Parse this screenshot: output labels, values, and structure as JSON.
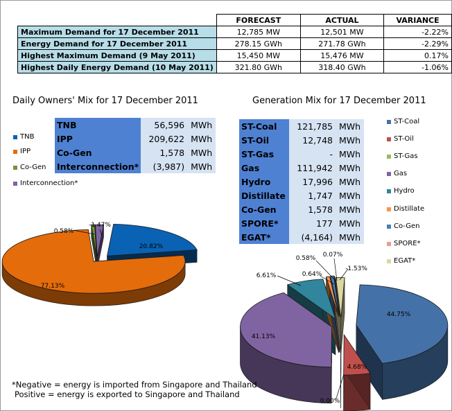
{
  "summary": {
    "headers": [
      "FORECAST",
      "ACTUAL",
      "VARIANCE"
    ],
    "rows": [
      {
        "label": "Maximum Demand for 17 December 2011",
        "forecast": "12,785  MW",
        "actual": "12,501  MW",
        "variance": "-2.22%"
      },
      {
        "label": "Energy Demand for 17 December 2011",
        "forecast": "278.15  GWh",
        "actual": "271.78  GWh",
        "variance": "-2.29%"
      },
      {
        "label": "Highest Maximum Demand (9 May 2011)",
        "forecast": "15,450  MW",
        "actual": "15,476  MW",
        "variance": "0.17%"
      },
      {
        "label": "Highest Daily Energy Demand (10 May 2011)",
        "forecast": "321.80  GWh",
        "actual": "318.40  GWh",
        "variance": "-1.06%"
      }
    ]
  },
  "owners": {
    "title": "Daily Owners' Mix for 17 December 2011",
    "rows": [
      {
        "label": "TNB",
        "value": "56,596",
        "unit": "MWh"
      },
      {
        "label": "IPP",
        "value": "209,622",
        "unit": "MWh"
      },
      {
        "label": "Co-Gen",
        "value": "1,578",
        "unit": "MWh"
      },
      {
        "label": "Interconnection*",
        "value": "(3,987)",
        "unit": "MWh"
      }
    ],
    "legend": [
      "TNB",
      "IPP",
      "Co-Gen",
      "Interconnection*"
    ]
  },
  "generation": {
    "title": "Generation Mix for 17 December 2011",
    "rows": [
      {
        "label": "ST-Coal",
        "value": "121,785",
        "unit": "MWh"
      },
      {
        "label": "ST-Oil",
        "value": "12,748",
        "unit": "MWh"
      },
      {
        "label": "ST-Gas",
        "value": "-",
        "unit": "MWh"
      },
      {
        "label": "Gas",
        "value": "111,942",
        "unit": "MWh"
      },
      {
        "label": "Hydro",
        "value": "17,996",
        "unit": "MWh"
      },
      {
        "label": "Distillate",
        "value": "1,747",
        "unit": "MWh"
      },
      {
        "label": "Co-Gen",
        "value": "1,578",
        "unit": "MWh"
      },
      {
        "label": "SPORE*",
        "value": "177",
        "unit": "MWh"
      },
      {
        "label": "EGAT*",
        "value": "(4,164)",
        "unit": "MWh"
      }
    ],
    "legend": [
      "ST-Coal",
      "ST-Oil",
      "ST-Gas",
      "Gas",
      "Hydro",
      "Distillate",
      "Co-Gen",
      "SPORE*",
      "EGAT*"
    ]
  },
  "note": {
    "line1": "*Negative = energy is imported from Singapore and Thailand",
    "line2": "Positive = energy is exported to Singapore and Thailand"
  },
  "chart_data": [
    {
      "type": "pie",
      "categories": [
        "TNB",
        "IPP",
        "Co-Gen",
        "Interconnection*"
      ],
      "values": [
        20.82,
        77.13,
        0.58,
        -1.47
      ],
      "labels": [
        "20.82%",
        "77.13%",
        "0.58%",
        "-1.47%"
      ],
      "colors": [
        "#0a62b4",
        "#e46c0a",
        "#77933c",
        "#8064a2"
      ],
      "legend": "left"
    },
    {
      "type": "pie",
      "categories": [
        "ST-Coal",
        "ST-Oil",
        "ST-Gas",
        "Gas",
        "Hydro",
        "Distillate",
        "Co-Gen",
        "SPORE*",
        "EGAT*"
      ],
      "values": [
        44.75,
        4.68,
        0.0,
        41.13,
        6.61,
        0.64,
        0.58,
        0.07,
        -1.53
      ],
      "labels": [
        "44.75%",
        "4.68%",
        "0.00%",
        "41.13%",
        "6.61%",
        "0.64%",
        "0.58%",
        "0.07%",
        "-1.53%"
      ],
      "colors": [
        "#4472a8",
        "#c0504d",
        "#9bbb59",
        "#8064a2",
        "#31859c",
        "#f79646",
        "#4a7ebb",
        "#e8a090",
        "#dcd6a0"
      ],
      "legend": "right"
    }
  ]
}
